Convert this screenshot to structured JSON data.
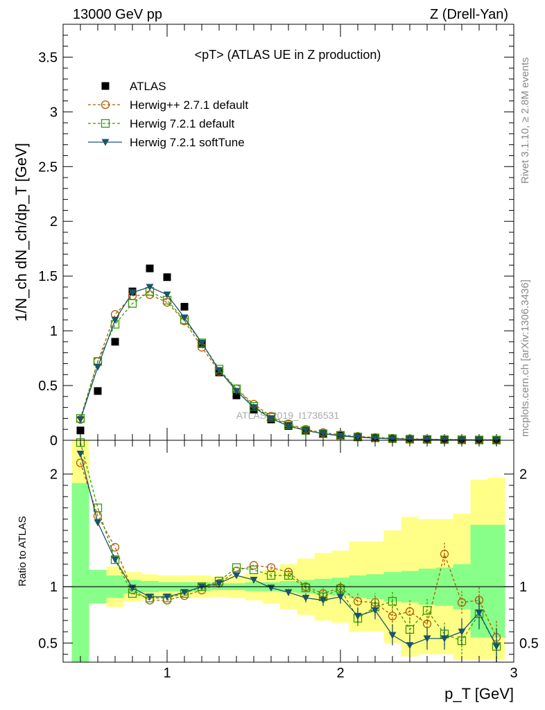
{
  "header": {
    "energy": "13000 GeV pp",
    "process": "Z (Drell-Yan)",
    "title": "<pT> (ATLAS UE in Z production)",
    "watermark": "ATLAS_2019_I1736531",
    "side_top": "Rivet 3.1.10, ≥ 2.8M events",
    "side_bottom": "mcplots.cern.ch [arXiv:1306.3436]"
  },
  "chart_data": {
    "type": "scatter",
    "xlabel": "p_T [GeV]",
    "ylabel_main": "1/N_ch dN_ch/dp_T [GeV]",
    "ylabel_ratio": "Ratio to ATLAS",
    "xlim": [
      0.4,
      3.0
    ],
    "ylim_main": [
      0,
      3.8
    ],
    "ylim_ratio": [
      0.33,
      2.3
    ],
    "x_ticks": [
      1,
      2,
      3
    ],
    "x_tick_labels": [
      "1",
      "2",
      "3"
    ],
    "y_ticks_main": [
      0,
      0.5,
      1,
      1.5,
      2,
      2.5,
      3,
      3.5
    ],
    "y_tick_labels_main": [
      "0",
      "0.5",
      "1",
      "1.5",
      "2",
      "2.5",
      "3",
      "3.5"
    ],
    "y_ticks_ratio": [
      0.5,
      1,
      2
    ],
    "y_tick_labels_ratio": [
      "0.5",
      "1",
      "2"
    ],
    "x": [
      0.5,
      0.6,
      0.7,
      0.8,
      0.9,
      1.0,
      1.1,
      1.2,
      1.3,
      1.4,
      1.5,
      1.6,
      1.7,
      1.8,
      1.9,
      2.0,
      2.1,
      2.2,
      2.3,
      2.4,
      2.5,
      2.6,
      2.7,
      2.8,
      2.9
    ],
    "series": [
      {
        "name": "ATLAS",
        "key": "atlas",
        "color": "#000000",
        "marker": "filled-square",
        "values": [
          0.09,
          0.45,
          0.9,
          1.36,
          1.57,
          1.49,
          1.22,
          0.88,
          0.62,
          0.41,
          0.28,
          0.19,
          0.13,
          0.09,
          0.06,
          0.045,
          0.032,
          0.023,
          0.017,
          0.012,
          0.009,
          0.007,
          0.005,
          0.004,
          0.003
        ],
        "ratio": [
          1,
          1,
          1,
          1,
          1,
          1,
          1,
          1,
          1,
          1,
          1,
          1,
          1,
          1,
          1,
          1,
          1,
          1,
          1,
          1,
          1,
          1,
          1,
          1,
          1
        ]
      },
      {
        "name": "Herwig++ 2.7.1 default",
        "key": "hpp",
        "color": "#b05a00",
        "marker": "open-circle",
        "values": [
          0.19,
          0.72,
          1.15,
          1.32,
          1.33,
          1.26,
          1.09,
          0.85,
          0.63,
          0.47,
          0.33,
          0.22,
          0.15,
          0.1,
          0.07,
          0.05,
          0.036,
          0.026,
          0.019,
          0.014,
          0.01,
          0.008,
          0.006,
          0.005,
          0.004
        ],
        "ratio": [
          2.1,
          1.63,
          1.35,
          0.97,
          0.88,
          0.88,
          0.92,
          0.97,
          1.03,
          1.14,
          1.19,
          1.17,
          1.13,
          1.0,
          0.94,
          0.99,
          0.87,
          0.86,
          0.74,
          0.78,
          0.67,
          1.29,
          0.86,
          0.88,
          0.55
        ],
        "ratio_err": [
          0,
          0,
          0,
          0,
          0,
          0,
          0,
          0,
          0,
          0,
          0,
          0.02,
          0.03,
          0.04,
          0.05,
          0.06,
          0.07,
          0.08,
          0.09,
          0.1,
          0.1,
          0.1,
          0.1,
          0.12,
          0.15
        ]
      },
      {
        "name": "Herwig 7.2.1 default",
        "key": "h7def",
        "color": "#339900",
        "marker": "open-square",
        "values": [
          0.2,
          0.72,
          1.06,
          1.25,
          1.36,
          1.28,
          1.1,
          0.89,
          0.65,
          0.47,
          0.31,
          0.21,
          0.14,
          0.09,
          0.06,
          0.045,
          0.03,
          0.022,
          0.015,
          0.01,
          0.008,
          0.006,
          0.004,
          0.003,
          0.002
        ],
        "ratio": [
          2.28,
          1.7,
          1.24,
          0.94,
          0.9,
          0.9,
          0.94,
          1.0,
          1.05,
          1.17,
          1.15,
          1.1,
          1.1,
          0.99,
          0.91,
          0.98,
          0.72,
          0.82,
          0.87,
          0.62,
          0.79,
          0.58,
          0.52,
          0.76,
          0.47
        ],
        "ratio_err": [
          0,
          0,
          0,
          0,
          0,
          0,
          0,
          0,
          0,
          0,
          0,
          0.02,
          0.03,
          0.04,
          0.05,
          0.06,
          0.07,
          0.08,
          0.09,
          0.1,
          0.1,
          0.1,
          0.12,
          0.14,
          0.16
        ]
      },
      {
        "name": "Herwig 7.2.1 softTune",
        "key": "h7soft",
        "color": "#1a5468",
        "marker": "filled-triangle-down",
        "values": [
          0.19,
          0.67,
          1.1,
          1.35,
          1.4,
          1.33,
          1.12,
          0.89,
          0.64,
          0.45,
          0.3,
          0.2,
          0.13,
          0.09,
          0.06,
          0.04,
          0.028,
          0.019,
          0.013,
          0.009,
          0.006,
          0.005,
          0.004,
          0.003,
          0.002
        ],
        "ratio": [
          2.18,
          1.57,
          1.24,
          0.99,
          0.91,
          0.91,
          0.95,
          1.0,
          1.03,
          1.1,
          1.06,
          0.99,
          0.95,
          0.9,
          0.88,
          0.91,
          0.74,
          0.79,
          0.57,
          0.48,
          0.54,
          0.54,
          0.6,
          0.77,
          0.47
        ],
        "ratio_err": [
          0,
          0,
          0,
          0,
          0,
          0,
          0,
          0,
          0,
          0,
          0,
          0.02,
          0.03,
          0.04,
          0.05,
          0.06,
          0.07,
          0.08,
          0.09,
          0.1,
          0.1,
          0.1,
          0.12,
          0.14,
          0.16
        ]
      }
    ],
    "bands": {
      "yellow_color": "#ffff88",
      "green_color": "#88ff88",
      "edges": [
        0.45,
        0.55,
        0.65,
        0.75,
        0.85,
        0.95,
        1.05,
        1.15,
        1.25,
        1.35,
        1.45,
        1.55,
        1.65,
        1.75,
        1.85,
        1.95,
        2.05,
        2.15,
        2.25,
        2.35,
        2.45,
        2.55,
        2.65,
        2.75,
        2.85,
        2.95
      ],
      "green_lo": [
        0.33,
        0.85,
        0.9,
        0.94,
        0.95,
        0.96,
        0.96,
        0.96,
        0.97,
        0.97,
        0.96,
        0.96,
        0.95,
        0.94,
        0.93,
        0.92,
        0.9,
        0.89,
        0.87,
        0.86,
        0.84,
        0.83,
        0.8,
        0.55,
        0.55
      ],
      "green_hi": [
        1.92,
        1.15,
        1.1,
        1.06,
        1.05,
        1.04,
        1.04,
        1.04,
        1.03,
        1.03,
        1.04,
        1.04,
        1.05,
        1.06,
        1.07,
        1.08,
        1.1,
        1.11,
        1.13,
        1.14,
        1.16,
        1.17,
        1.2,
        1.55,
        1.55
      ],
      "yellow_lo": [
        0.33,
        0.88,
        0.82,
        0.87,
        0.89,
        0.9,
        0.9,
        0.9,
        0.91,
        0.9,
        0.88,
        0.85,
        0.8,
        0.75,
        0.7,
        0.68,
        0.6,
        0.6,
        0.5,
        0.38,
        0.4,
        0.4,
        0.35,
        0.35,
        0.35
      ],
      "yellow_hi": [
        2.3,
        1.12,
        1.18,
        1.13,
        1.11,
        1.1,
        1.1,
        1.1,
        1.09,
        1.1,
        1.12,
        1.15,
        1.2,
        1.25,
        1.3,
        1.32,
        1.4,
        1.4,
        1.5,
        1.62,
        1.6,
        1.6,
        1.65,
        1.95,
        1.97
      ]
    }
  }
}
